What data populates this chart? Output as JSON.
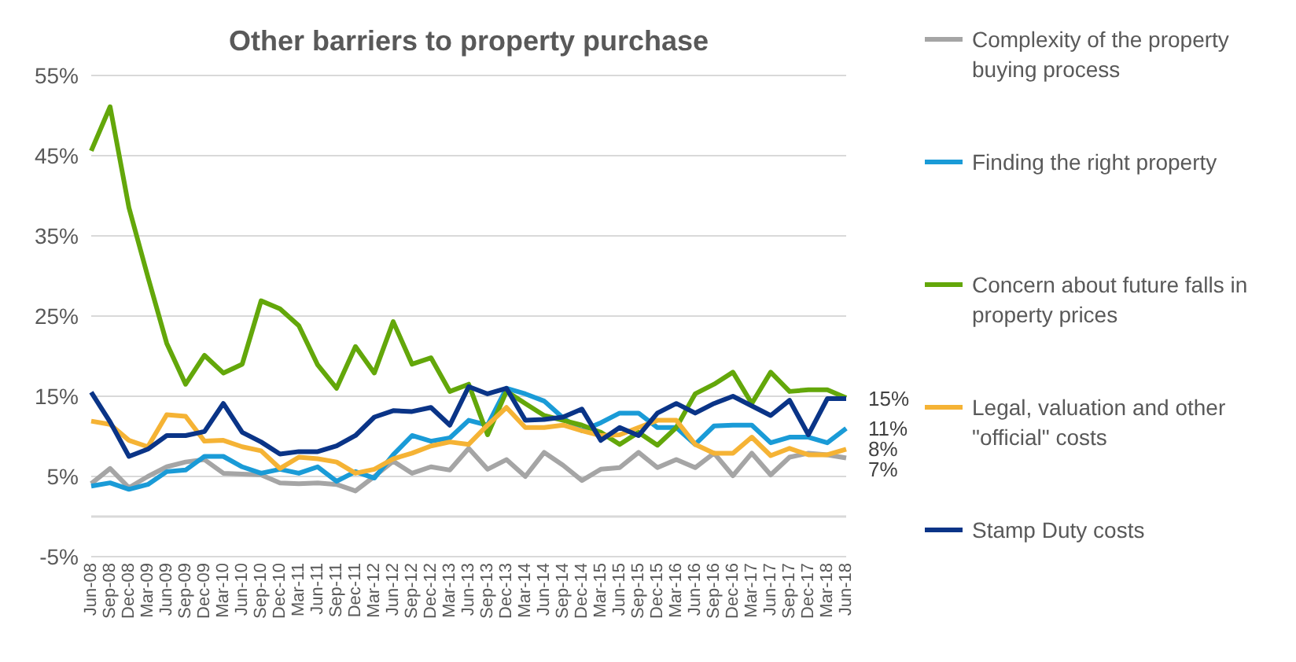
{
  "chart_data": {
    "type": "line",
    "title": "Other barriers to property purchase",
    "categories": [
      "Jun-08",
      "Sep-08",
      "Dec-08",
      "Mar-09",
      "Jun-09",
      "Sep-09",
      "Dec-09",
      "Mar-10",
      "Jun-10",
      "Sep-10",
      "Dec-10",
      "Mar-11",
      "Jun-11",
      "Sep-11",
      "Dec-11",
      "Mar-12",
      "Jun-12",
      "Sep-12",
      "Dec-12",
      "Mar-13",
      "Jun-13",
      "Sep-13",
      "Dec-13",
      "Mar-14",
      "Jun-14",
      "Sep-14",
      "Dec-14",
      "Mar-15",
      "Jun-15",
      "Sep-15",
      "Dec-15",
      "Mar-16",
      "Jun-16",
      "Sep-16",
      "Dec-16",
      "Mar-17",
      "Jun-17",
      "Sep-17",
      "Dec-17",
      "Mar-18",
      "Jun-18"
    ],
    "series": [
      {
        "name": "Complexity of the property buying process",
        "color": "#a5a5a5",
        "values": [
          4.1,
          6.0,
          3.6,
          5.0,
          6.2,
          6.8,
          7.1,
          5.4,
          5.3,
          5.2,
          4.2,
          4.1,
          4.2,
          4.0,
          3.2,
          5.0,
          6.9,
          5.4,
          6.2,
          5.8,
          8.5,
          5.9,
          7.1,
          5.0,
          8.0,
          6.4,
          4.5,
          5.9,
          6.1,
          8.0,
          6.1,
          7.1,
          6.1,
          7.9,
          5.1,
          7.9,
          5.2,
          7.4,
          7.9,
          7.7,
          7.3
        ],
        "value_labels": [
          null,
          null,
          null,
          null,
          null,
          null,
          null,
          null,
          null,
          null,
          null,
          null,
          null,
          null,
          null,
          null,
          null,
          null,
          null,
          null,
          null,
          null,
          null,
          null,
          null,
          null,
          null,
          null,
          null,
          null,
          null,
          null,
          null,
          null,
          null,
          null,
          null,
          null,
          null,
          null,
          "7%"
        ]
      },
      {
        "name": "Finding the right property",
        "color": "#1a9bd7",
        "values": [
          3.8,
          4.2,
          3.4,
          4.0,
          5.6,
          5.8,
          7.5,
          7.5,
          6.2,
          5.4,
          5.9,
          5.4,
          6.2,
          4.4,
          5.6,
          4.8,
          7.7,
          10.1,
          9.4,
          9.8,
          12.0,
          11.4,
          16.0,
          15.3,
          14.4,
          12.3,
          10.7,
          11.7,
          12.9,
          12.9,
          11.1,
          11.1,
          9.0,
          11.3,
          11.4,
          11.4,
          9.2,
          9.9,
          9.9,
          9.2,
          11.0
        ],
        "value_labels": [
          null,
          null,
          null,
          null,
          null,
          null,
          null,
          null,
          null,
          null,
          null,
          null,
          null,
          null,
          null,
          null,
          null,
          null,
          null,
          null,
          null,
          null,
          null,
          null,
          null,
          null,
          null,
          null,
          null,
          null,
          null,
          null,
          null,
          null,
          null,
          null,
          null,
          null,
          null,
          null,
          "11%"
        ]
      },
      {
        "name": "Concern about future falls in property prices",
        "color": "#63a70a",
        "values": [
          45.6,
          51.1,
          38.5,
          29.9,
          21.6,
          16.5,
          20.1,
          17.9,
          19.0,
          26.9,
          25.9,
          23.8,
          18.9,
          16.0,
          21.2,
          17.9,
          24.3,
          19.0,
          19.8,
          15.6,
          16.5,
          10.2,
          15.6,
          14.1,
          12.6,
          12.0,
          11.4,
          10.5,
          9.0,
          10.5,
          8.9,
          11.1,
          15.3,
          16.5,
          18.0,
          14.1,
          18.0,
          15.6,
          15.8,
          15.8,
          14.8
        ]
      },
      {
        "name": "Legal, valuation and other \"official\" costs",
        "color": "#f5b335",
        "values": [
          11.9,
          11.5,
          9.5,
          8.7,
          12.7,
          12.5,
          9.4,
          9.5,
          8.7,
          8.2,
          6.0,
          7.4,
          7.2,
          6.8,
          5.4,
          5.9,
          7.2,
          7.9,
          8.8,
          9.3,
          9.0,
          11.4,
          13.6,
          11.1,
          11.1,
          11.4,
          10.7,
          10.1,
          10.2,
          11.1,
          12.0,
          12.0,
          9.0,
          7.9,
          7.9,
          9.9,
          7.6,
          8.5,
          7.7,
          7.7,
          8.4
        ],
        "value_labels": [
          null,
          null,
          null,
          null,
          null,
          null,
          null,
          null,
          null,
          null,
          null,
          null,
          null,
          null,
          null,
          null,
          null,
          null,
          null,
          null,
          null,
          null,
          null,
          null,
          null,
          null,
          null,
          null,
          null,
          null,
          null,
          null,
          null,
          null,
          null,
          null,
          null,
          null,
          null,
          null,
          "8%"
        ]
      },
      {
        "name": "Stamp Duty costs",
        "color": "#0a3487",
        "values": [
          15.5,
          11.8,
          7.5,
          8.4,
          10.1,
          10.1,
          10.6,
          14.1,
          10.5,
          9.3,
          7.8,
          8.1,
          8.1,
          8.8,
          10.1,
          12.4,
          13.2,
          13.1,
          13.6,
          11.4,
          16.2,
          15.3,
          16.0,
          12.0,
          12.1,
          12.4,
          13.4,
          9.5,
          11.1,
          10.1,
          12.9,
          14.1,
          12.9,
          14.1,
          15.0,
          13.8,
          12.6,
          14.5,
          10.2,
          14.7,
          14.7
        ],
        "value_labels": [
          null,
          null,
          null,
          null,
          null,
          null,
          null,
          null,
          null,
          null,
          null,
          null,
          null,
          null,
          null,
          null,
          null,
          null,
          null,
          null,
          null,
          null,
          null,
          null,
          null,
          null,
          null,
          null,
          null,
          null,
          null,
          null,
          null,
          null,
          null,
          null,
          null,
          null,
          null,
          null,
          "15%"
        ]
      }
    ],
    "ylim": [
      -5,
      55
    ],
    "yticks": [
      {
        "value": -5,
        "label": "-5%"
      },
      {
        "value": 5,
        "label": "5%"
      },
      {
        "value": 15,
        "label": "15%"
      },
      {
        "value": 25,
        "label": "25%"
      },
      {
        "value": 35,
        "label": "35%"
      },
      {
        "value": 45,
        "label": "45%"
      },
      {
        "value": 55,
        "label": "55%"
      }
    ],
    "ref_lines": [
      {
        "axis": "y",
        "value": 0,
        "color": "#d9d9d9"
      }
    ],
    "grid": "y",
    "legend": "right",
    "marker": "none",
    "line_style": "solid"
  }
}
